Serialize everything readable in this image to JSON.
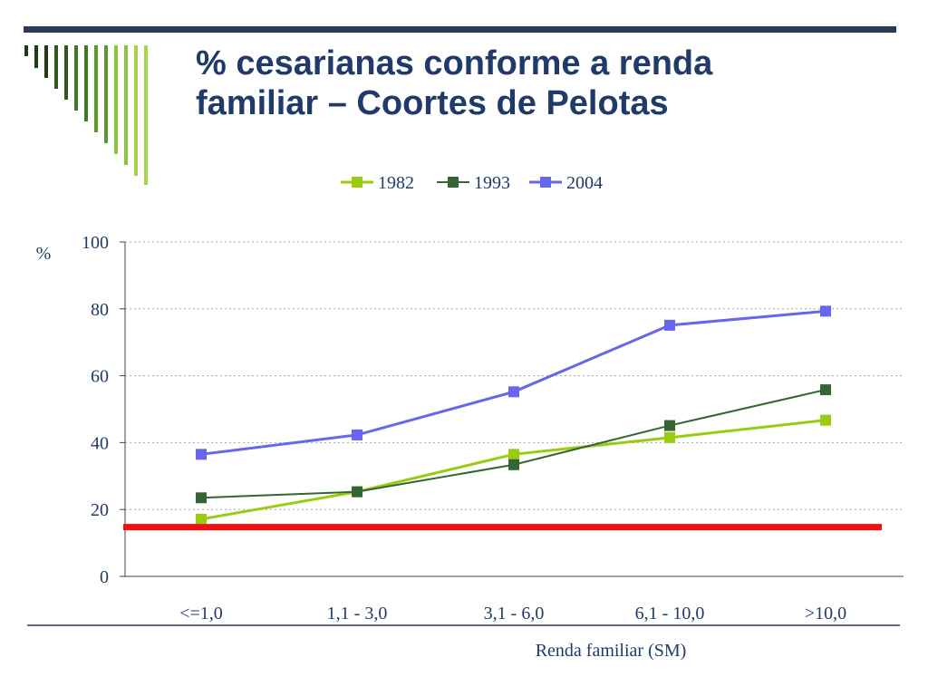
{
  "slide": {
    "title_line1": "% cesarianas conforme a renda",
    "title_line2": "familiar – Coortes de Pelotas",
    "accent_color": "#2b3a59",
    "deco_colors": [
      "#1e3d12",
      "#2d5a1b",
      "#3d7a22",
      "#5a9a2a",
      "#8cc63f",
      "#a8d44a"
    ]
  },
  "chart_data": {
    "type": "line",
    "categories": [
      "<=1,0",
      "1,1 - 3,0",
      "3,1 - 6,0",
      "6,1 - 10,0",
      ">10,0"
    ],
    "series": [
      {
        "name": "1982",
        "color": "#99cc11",
        "values": [
          17.1,
          25.3,
          36.5,
          41.5,
          46.7
        ]
      },
      {
        "name": "1993",
        "color": "#336633",
        "values": [
          23.5,
          25.3,
          33.4,
          45.1,
          55.8
        ]
      },
      {
        "name": "2004",
        "color": "#6666ee",
        "values": [
          36.5,
          42.3,
          55.2,
          75.1,
          79.3
        ]
      }
    ],
    "reference_line": {
      "value": 15,
      "color": "#ee1111"
    },
    "yticks": [
      0,
      20,
      40,
      60,
      80,
      100
    ],
    "ylim": [
      0,
      100
    ],
    "ylabel": "%",
    "xlabel": "Renda familiar (SM)",
    "grid": true,
    "legend_position": "top"
  }
}
